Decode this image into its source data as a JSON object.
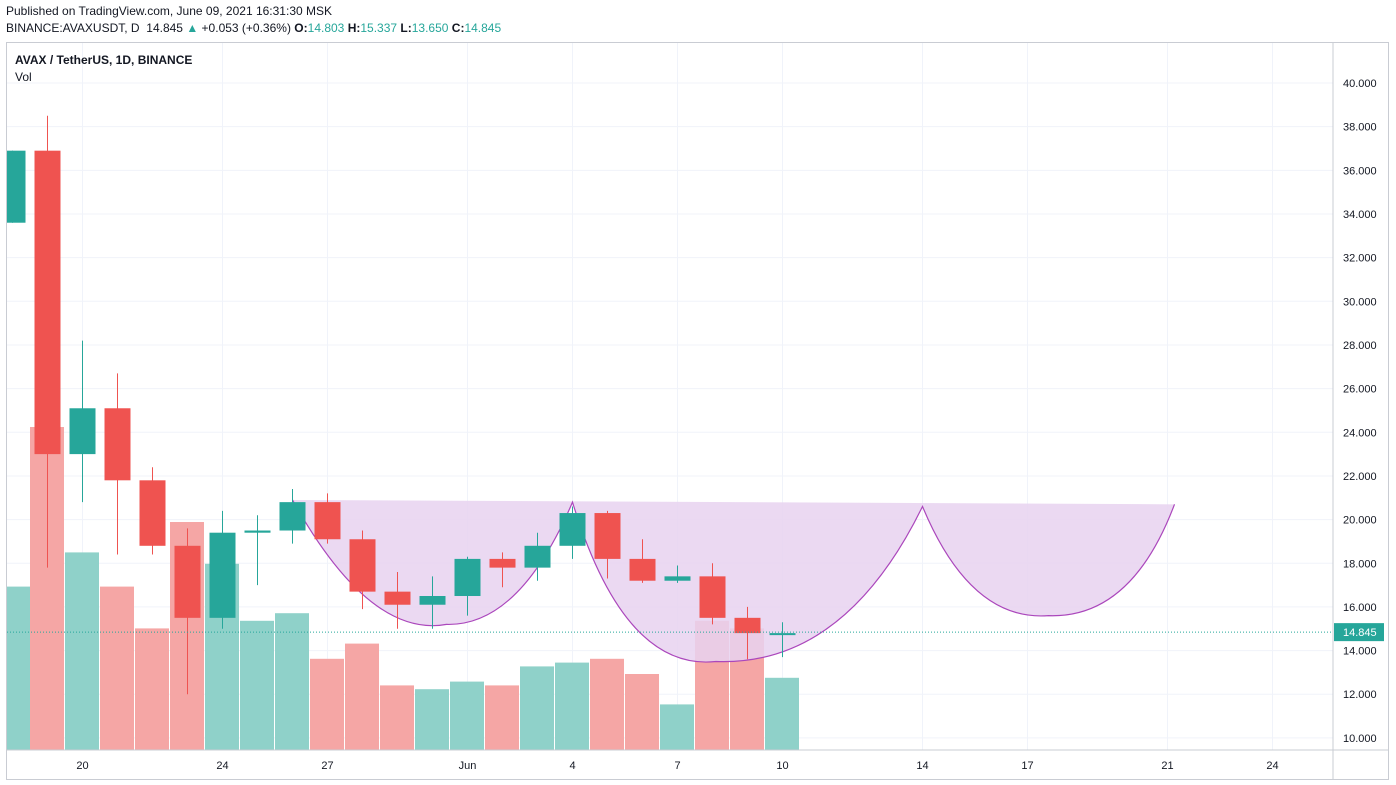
{
  "header": {
    "published": "Published on TradingView.com, June 09, 2021 16:31:30 MSK",
    "symbol": "BINANCE:AVAXUSDT, D",
    "last": "14.845",
    "change_arrow": "▲",
    "change": "+0.053 (+0.36%)",
    "o_label": "O:",
    "o_value": "14.803",
    "h_label": "H:",
    "h_value": "15.337",
    "l_label": "L:",
    "l_value": "13.650",
    "c_label": "C:",
    "c_value": "14.845"
  },
  "legend": {
    "title": "AVAX / TetherUS, 1D, BINANCE",
    "volume": "Vol"
  },
  "colors": {
    "up": "#26a69a",
    "down": "#ef5350",
    "up_volume": "#8fd1c9",
    "down_volume": "#f5a6a5",
    "pattern_fill": "#e8d2f0",
    "pattern_stroke": "#ab47bc"
  },
  "chart_data": {
    "type": "candlestick",
    "y_ticks": [
      "40.000",
      "38.000",
      "36.000",
      "34.000",
      "32.000",
      "30.000",
      "28.000",
      "26.000",
      "24.000",
      "22.000",
      "20.000",
      "18.000",
      "16.000",
      "14.000",
      "12.000",
      "10.000"
    ],
    "ylim": [
      9.4,
      41.3
    ],
    "x_ticks": [
      {
        "label": "20",
        "idx": 2
      },
      {
        "label": "24",
        "idx": 6
      },
      {
        "label": "27",
        "idx": 9
      },
      {
        "label": "Jun",
        "idx": 13
      },
      {
        "label": "4",
        "idx": 16
      },
      {
        "label": "7",
        "idx": 19
      },
      {
        "label": "10",
        "idx": 22
      },
      {
        "label": "14",
        "idx": 26
      },
      {
        "label": "17",
        "idx": 29
      },
      {
        "label": "21",
        "idx": 33
      },
      {
        "label": "24",
        "idx": 36
      }
    ],
    "candles": [
      {
        "o": 33.6,
        "h": 36.9,
        "l": 33.6,
        "c": 36.9,
        "vol": 13.3
      },
      {
        "o": 36.9,
        "h": 38.5,
        "l": 17.8,
        "c": 23.0,
        "vol": 17.5
      },
      {
        "o": 23.0,
        "h": 28.2,
        "l": 20.8,
        "c": 25.1,
        "vol": 14.2
      },
      {
        "o": 25.1,
        "h": 26.7,
        "l": 18.4,
        "c": 21.8,
        "vol": 13.3
      },
      {
        "o": 21.8,
        "h": 22.4,
        "l": 18.4,
        "c": 18.8,
        "vol": 12.2
      },
      {
        "o": 18.8,
        "h": 19.6,
        "l": 12.0,
        "c": 15.5,
        "vol": 15.0
      },
      {
        "o": 15.5,
        "h": 20.4,
        "l": 15.0,
        "c": 19.4,
        "vol": 13.9
      },
      {
        "o": 19.4,
        "h": 20.2,
        "l": 17.0,
        "c": 19.5,
        "vol": 12.4
      },
      {
        "o": 19.5,
        "h": 21.4,
        "l": 18.9,
        "c": 20.8,
        "vol": 12.6
      },
      {
        "o": 20.8,
        "h": 21.2,
        "l": 18.9,
        "c": 19.1,
        "vol": 11.4
      },
      {
        "o": 19.1,
        "h": 19.5,
        "l": 15.9,
        "c": 16.7,
        "vol": 11.8
      },
      {
        "o": 16.7,
        "h": 17.6,
        "l": 15.0,
        "c": 16.1,
        "vol": 10.7
      },
      {
        "o": 16.1,
        "h": 17.4,
        "l": 15.0,
        "c": 16.5,
        "vol": 10.6
      },
      {
        "o": 16.5,
        "h": 18.3,
        "l": 15.6,
        "c": 18.2,
        "vol": 10.8
      },
      {
        "o": 18.2,
        "h": 18.5,
        "l": 16.9,
        "c": 17.8,
        "vol": 10.7
      },
      {
        "o": 17.8,
        "h": 19.4,
        "l": 17.2,
        "c": 18.8,
        "vol": 11.2
      },
      {
        "o": 18.8,
        "h": 20.6,
        "l": 18.2,
        "c": 20.3,
        "vol": 11.3
      },
      {
        "o": 20.3,
        "h": 20.4,
        "l": 17.3,
        "c": 18.2,
        "vol": 11.4
      },
      {
        "o": 18.2,
        "h": 19.1,
        "l": 17.1,
        "c": 17.2,
        "vol": 11.0
      },
      {
        "o": 17.2,
        "h": 17.9,
        "l": 17.1,
        "c": 17.4,
        "vol": 10.2
      },
      {
        "o": 17.4,
        "h": 18.0,
        "l": 15.2,
        "c": 15.5,
        "vol": 12.4
      },
      {
        "o": 15.5,
        "h": 16.0,
        "l": 13.6,
        "c": 14.8,
        "vol": 12.2
      },
      {
        "o": 14.8,
        "h": 15.3,
        "l": 13.7,
        "c": 14.8,
        "vol": 10.9
      }
    ],
    "last_price": "14.845",
    "pattern": {
      "type": "cup-and-handle",
      "top_left": {
        "idx": 8.0,
        "y": 20.9
      },
      "cup1_bottom": {
        "idx": 12.4,
        "y": 15.2
      },
      "peak": {
        "idx": 16.0,
        "y": 20.8
      },
      "cup2_bottom": {
        "idx": 20.1,
        "y": 13.5
      },
      "peak2": {
        "idx": 26.0,
        "y": 20.6
      },
      "cup3_bottom": {
        "idx": 29.6,
        "y": 15.6
      },
      "end": {
        "idx": 33.2,
        "y": 20.7
      }
    }
  }
}
